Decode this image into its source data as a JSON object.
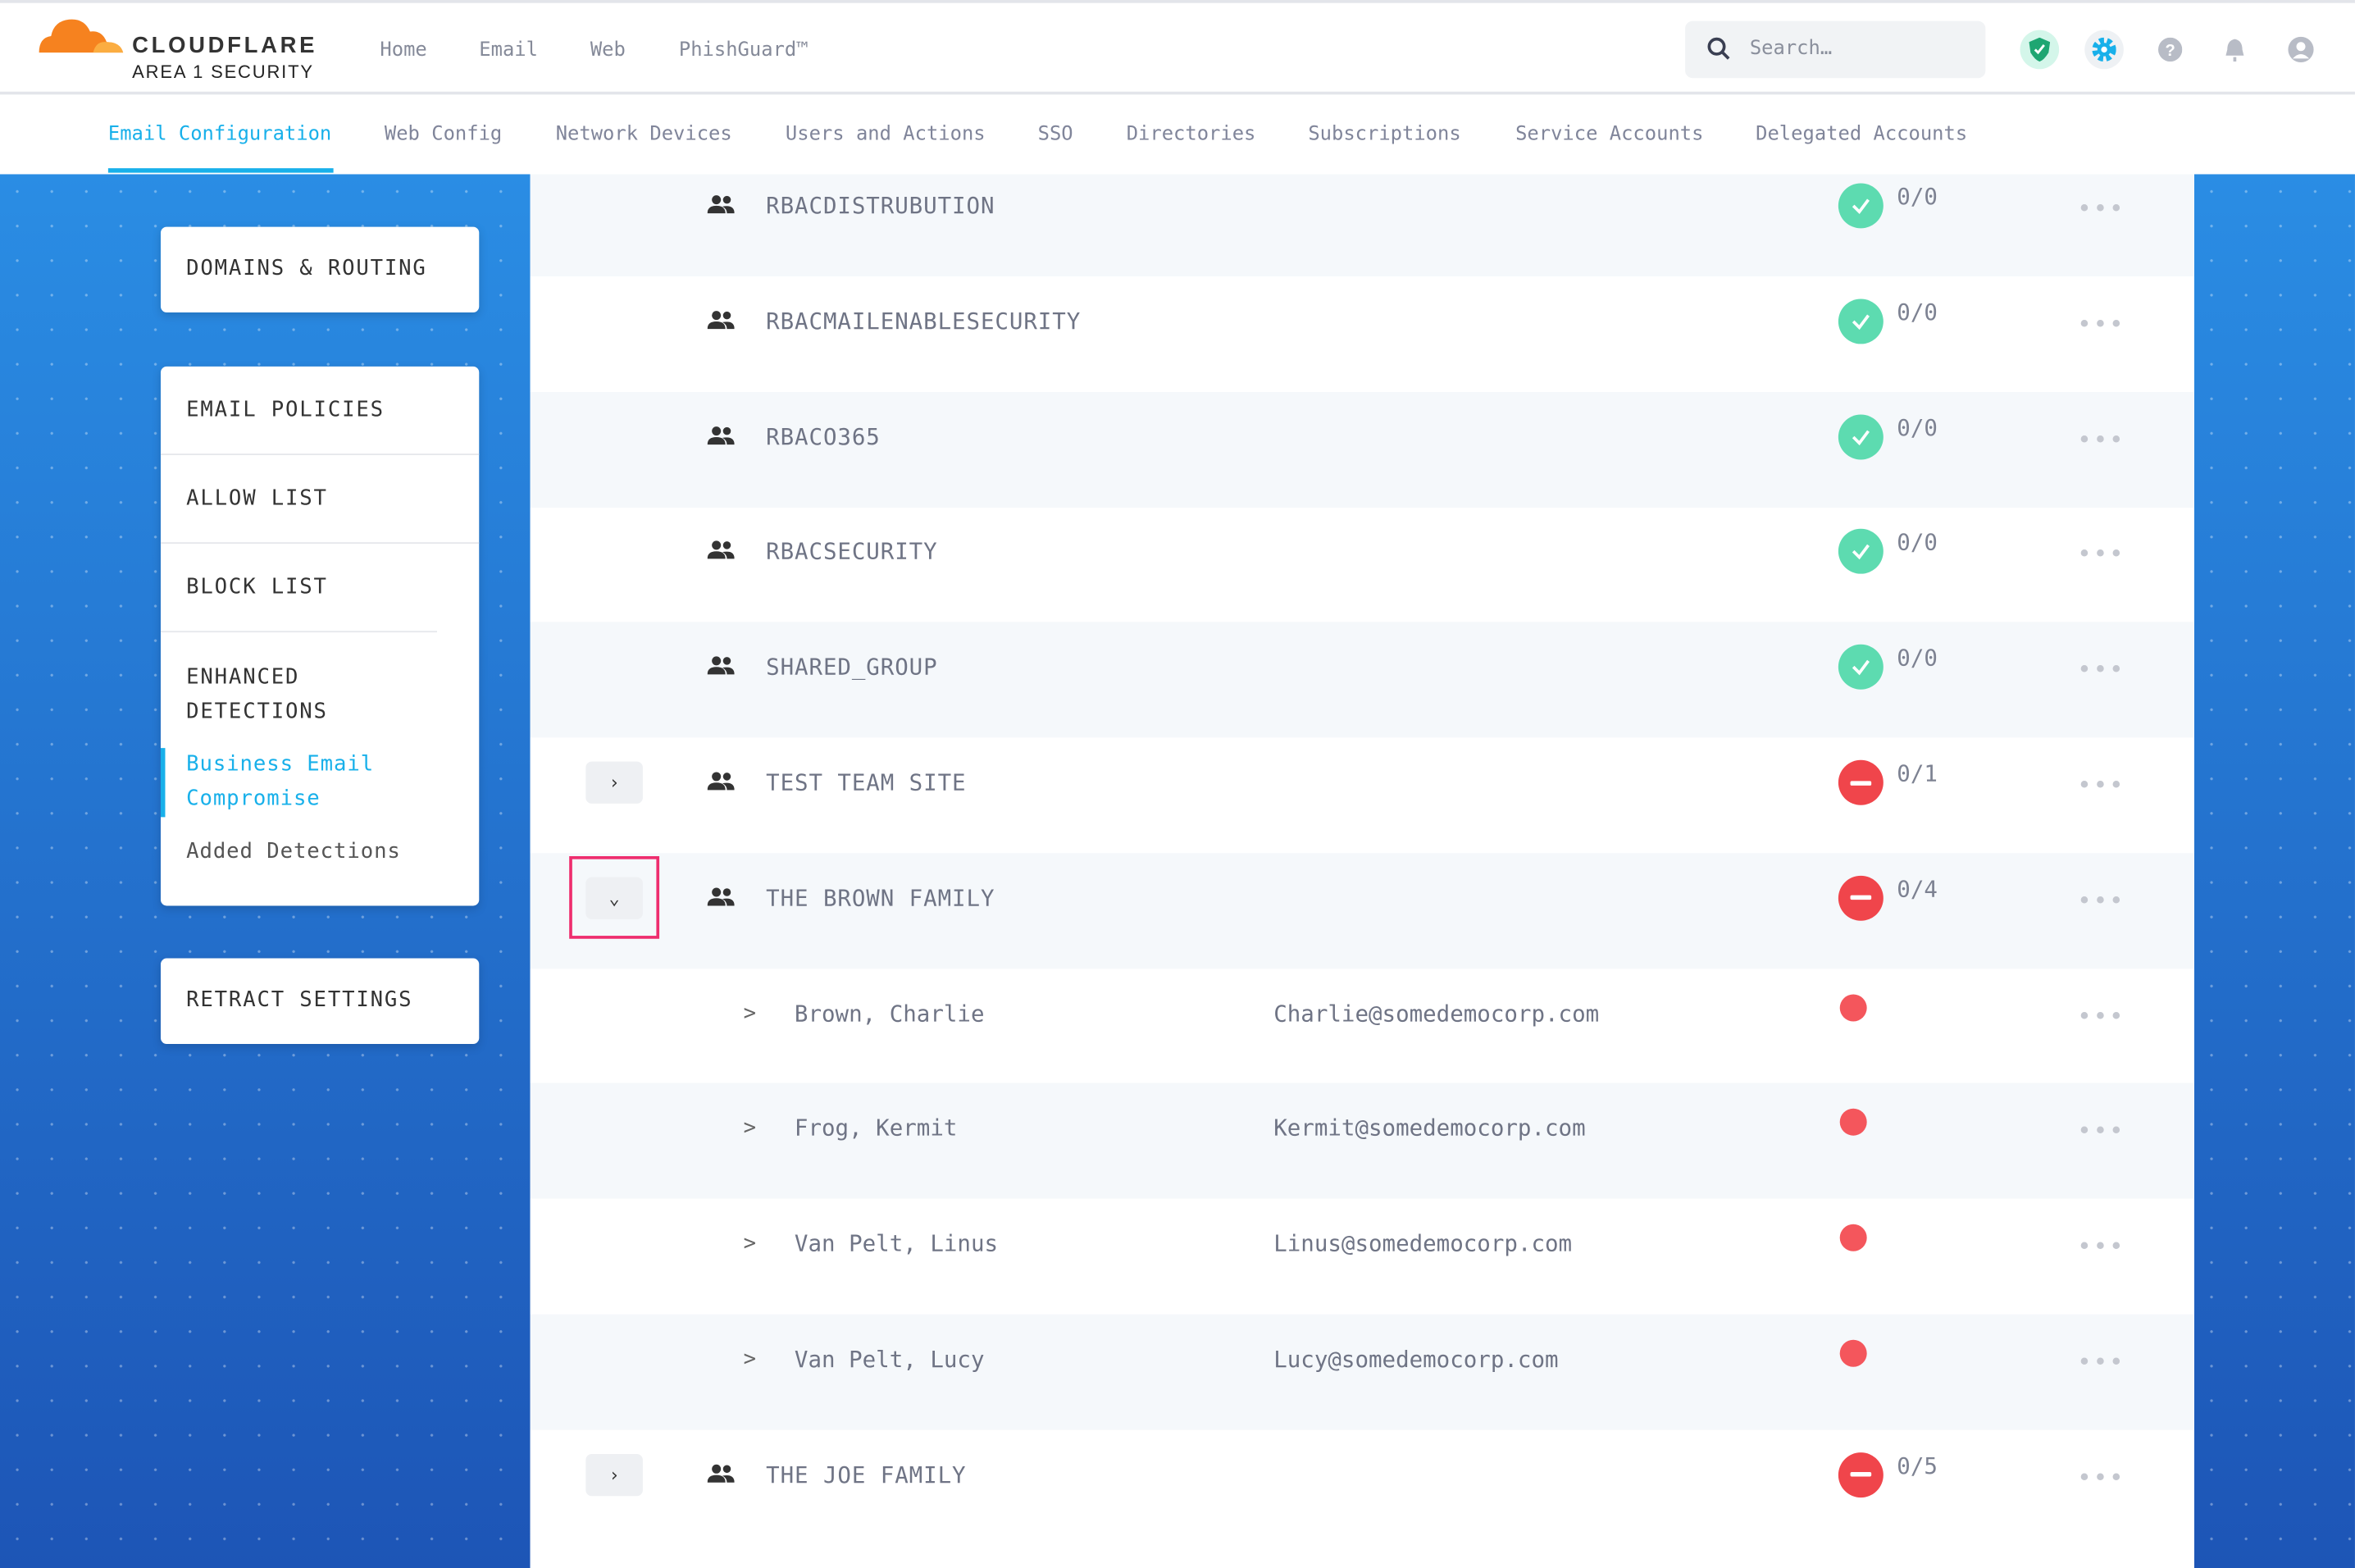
{
  "brand": {
    "name": "CLOUDFLARE",
    "sub": "AREA 1 SECURITY"
  },
  "topnav": [
    "Home",
    "Email",
    "Web",
    "PhishGuard™"
  ],
  "search": {
    "placeholder": "Search…"
  },
  "tabs": [
    "Email Configuration",
    "Web Config",
    "Network Devices",
    "Users and Actions",
    "SSO",
    "Directories",
    "Subscriptions",
    "Service Accounts",
    "Delegated Accounts"
  ],
  "active_tab": "Email Configuration",
  "sidebar": {
    "domains": "DOMAINS & ROUTING",
    "email_policies": "EMAIL POLICIES",
    "allow_list": "ALLOW LIST",
    "block_list": "BLOCK LIST",
    "enhanced": "ENHANCED DETECTIONS",
    "bec": "Business Email Compromise",
    "added": "Added Detections",
    "retract": "RETRACT SETTINGS"
  },
  "colors": {
    "accent": "#18b0ea",
    "ok": "#5ddbb0",
    "error": "#f0454b",
    "highlight": "#ee2d6e"
  },
  "groups": [
    {
      "name": "RBACDISTRUBUTION",
      "status": "ok",
      "count": "0/0"
    },
    {
      "name": "RBACMAILENABLESECURITY",
      "status": "ok",
      "count": "0/0"
    },
    {
      "name": "RBACO365",
      "status": "ok",
      "count": "0/0"
    },
    {
      "name": "RBACSECURITY",
      "status": "ok",
      "count": "0/0"
    },
    {
      "name": "SHARED_GROUP",
      "status": "ok",
      "count": "0/0"
    },
    {
      "name": "TEST TEAM SITE",
      "status": "error",
      "count": "0/1",
      "expand": "collapsed"
    },
    {
      "name": "THE BROWN FAMILY",
      "status": "error",
      "count": "0/4",
      "expand": "expanded"
    },
    {
      "name": "THE JOE FAMILY",
      "status": "error",
      "count": "0/5",
      "expand": "collapsed"
    }
  ],
  "members": [
    {
      "name": "Brown, Charlie",
      "email": "Charlie@somedemocorp.com"
    },
    {
      "name": "Frog, Kermit",
      "email": "Kermit@somedemocorp.com"
    },
    {
      "name": "Van Pelt, Linus",
      "email": "Linus@somedemocorp.com"
    },
    {
      "name": "Van Pelt, Lucy",
      "email": "Lucy@somedemocorp.com"
    }
  ],
  "more_label": "•••",
  "member_arrow": ">"
}
